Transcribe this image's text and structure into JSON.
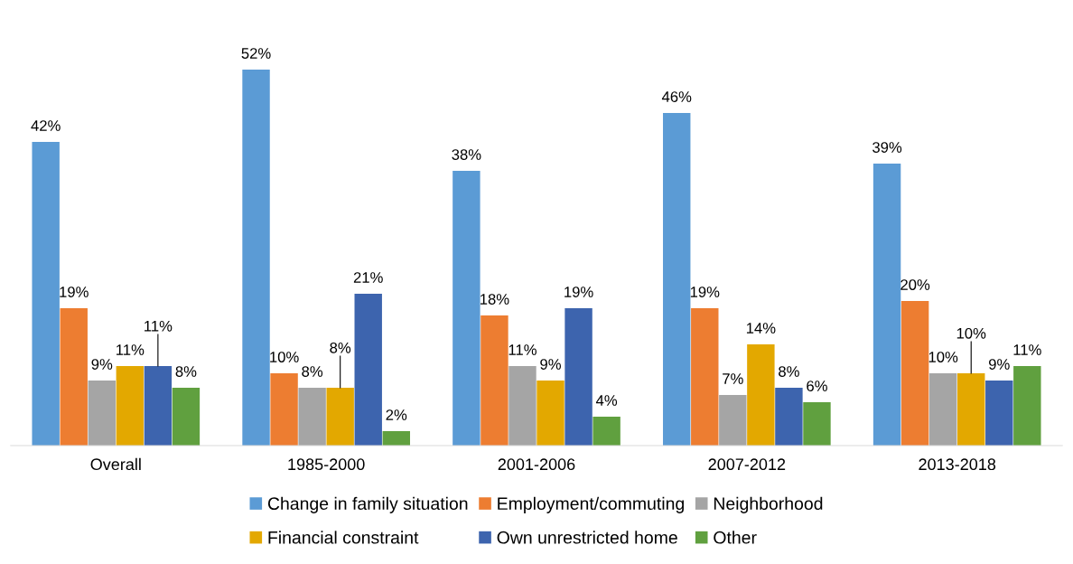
{
  "chart_data": {
    "type": "bar",
    "categories": [
      "Overall",
      "1985-2000",
      "2001-2006",
      "2007-2012",
      "2013-2018"
    ],
    "series": [
      {
        "name": "Change in family situation",
        "color": "#5b9bd5",
        "values": [
          42,
          52,
          38,
          46,
          39
        ],
        "value_labels": [
          "42%",
          "52%",
          "38%",
          "46%",
          "39%"
        ]
      },
      {
        "name": "Employment/commuting",
        "color": "#ed7d31",
        "values": [
          19,
          10,
          18,
          19,
          20
        ],
        "value_labels": [
          "19%",
          "10%",
          "18%",
          "19%",
          "20%"
        ]
      },
      {
        "name": "Neighborhood",
        "color": "#a5a5a5",
        "values": [
          9,
          8,
          11,
          7,
          10
        ],
        "value_labels": [
          "9%",
          "8%",
          "11%",
          "7%",
          "10%"
        ]
      },
      {
        "name": "Financial constraint",
        "color": "#e3a800",
        "values": [
          11,
          8,
          9,
          14,
          10
        ],
        "value_labels": [
          "11%",
          "8%",
          "9%",
          "14%",
          "10%"
        ]
      },
      {
        "name": "Own unrestricted home",
        "color": "#3d64ae",
        "values": [
          11,
          21,
          19,
          8,
          9
        ],
        "value_labels": [
          "11%",
          "21%",
          "19%",
          "8%",
          "9%"
        ]
      },
      {
        "name": "Other",
        "color": "#60a03f",
        "values": [
          8,
          2,
          4,
          6,
          11
        ],
        "value_labels": [
          "8%",
          "2%",
          "4%",
          "6%",
          "11%"
        ]
      }
    ],
    "data_labels": true,
    "legend": "bottom"
  }
}
